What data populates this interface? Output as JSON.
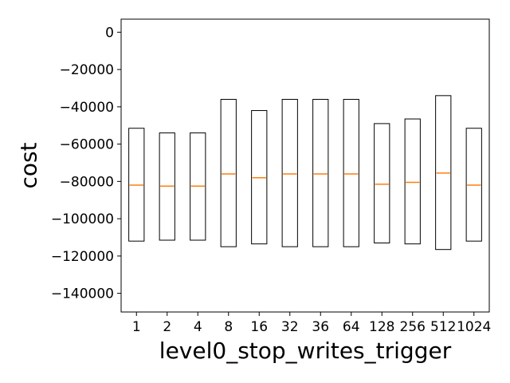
{
  "chart_data": {
    "type": "box",
    "xlabel": "level0_stop_writes_trigger",
    "ylabel": "cost",
    "ylim": [
      -150000,
      7000
    ],
    "yticks": [
      0,
      -20000,
      -40000,
      -60000,
      -80000,
      -100000,
      -120000,
      -140000
    ],
    "ytick_labels": [
      "0",
      "−20000",
      "−40000",
      "−60000",
      "−80000",
      "−100000",
      "−120000",
      "−140000"
    ],
    "categories": [
      "1",
      "2",
      "4",
      "8",
      "16",
      "32",
      "36",
      "64",
      "128",
      "256",
      "512",
      "1024"
    ],
    "highlighted_category": "512",
    "boxes": [
      {
        "q1": -112000,
        "q3": -51500,
        "median": -82000
      },
      {
        "q1": -111500,
        "q3": -54000,
        "median": -82500
      },
      {
        "q1": -111500,
        "q3": -54000,
        "median": -82500
      },
      {
        "q1": -115000,
        "q3": -36000,
        "median": -76000
      },
      {
        "q1": -113500,
        "q3": -42000,
        "median": -78000
      },
      {
        "q1": -115000,
        "q3": -36000,
        "median": -76000
      },
      {
        "q1": -115000,
        "q3": -36000,
        "median": -76000
      },
      {
        "q1": -115000,
        "q3": -36000,
        "median": -76000
      },
      {
        "q1": -113000,
        "q3": -49000,
        "median": -81500
      },
      {
        "q1": -113500,
        "q3": -46500,
        "median": -80500
      },
      {
        "q1": -116500,
        "q3": -34000,
        "median": -75500
      },
      {
        "q1": -112000,
        "q3": -51500,
        "median": -82000
      }
    ],
    "colors": {
      "box": "#000000",
      "median": "#ff7f0e",
      "highlight_label": "#ff0000",
      "text": "#000000"
    },
    "grid": false,
    "legend": "none"
  }
}
